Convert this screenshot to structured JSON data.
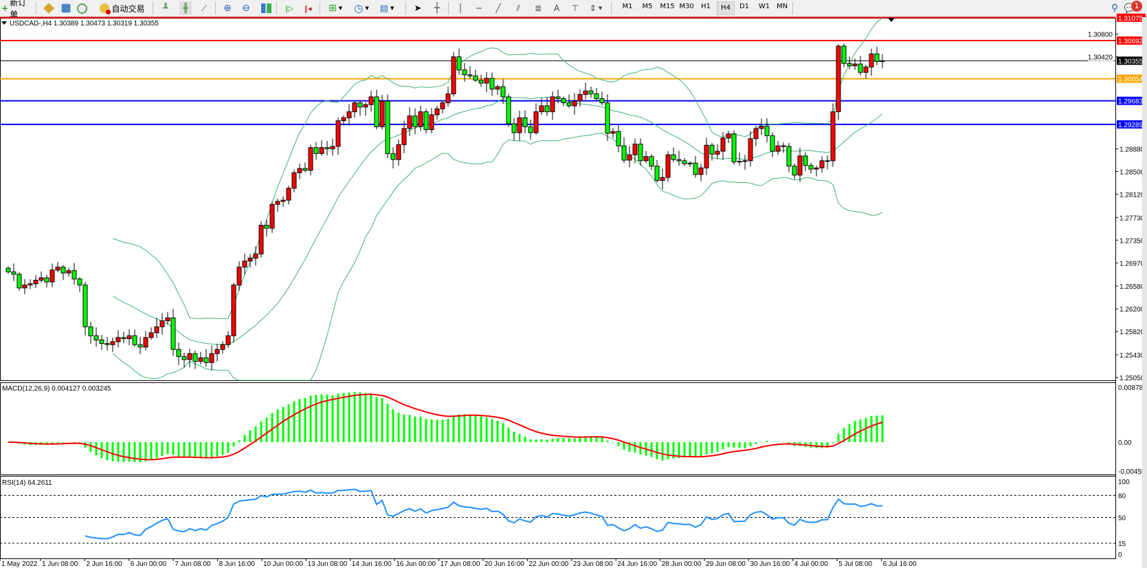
{
  "toolbar": {
    "new_order_label": "新订单",
    "auto_trade_label": "自动交易",
    "timeframes": [
      "M1",
      "M5",
      "M15",
      "M30",
      "H1",
      "H4",
      "D1",
      "W1",
      "MN"
    ],
    "active_timeframe": "H4",
    "notification_count": "1",
    "icons": [
      "new-order-icon",
      "history-icon",
      "navigator-icon",
      "signals-icon",
      "auto-trade-icon",
      "bar-chart-icon",
      "candlestick-icon",
      "line-chart-icon",
      "zoom-in-icon",
      "zoom-out-icon",
      "tile-windows-icon",
      "auto-scroll-icon",
      "chart-shift-icon",
      "indicators-icon",
      "periods-icon",
      "templates-icon",
      "cursor-icon",
      "crosshair-icon",
      "vertical-line-icon",
      "horizontal-line-icon",
      "trendline-icon",
      "equidistant-channel-icon",
      "fibonacci-icon",
      "text-icon",
      "text-label-icon",
      "arrows-icon",
      "search-icon",
      "notification-icon"
    ]
  },
  "chart": {
    "header": "USDCAD-,H4  1.30389 1.30473 1.30319 1.30355",
    "colors": {
      "bull": "#ff0000",
      "bear": "#00ff00",
      "bands": "#3cb371",
      "macd_hist": "#00ff00",
      "macd_signal": "#ff0000",
      "rsi": "#1e90ff"
    },
    "price_ticks": [
      "1.30800",
      "1.30420",
      "1.28880",
      "1.28500",
      "1.28120",
      "1.27730",
      "1.27350",
      "1.26970",
      "1.26580",
      "1.26200",
      "1.25820",
      "1.25430",
      "1.25050"
    ],
    "price_tick_values": [
      1.308,
      1.3042,
      1.2888,
      1.285,
      1.2812,
      1.2773,
      1.2735,
      1.2697,
      1.2658,
      1.262,
      1.2582,
      1.2543,
      1.2505
    ],
    "levels": [
      {
        "price": 1.31075,
        "label": "1.31075",
        "color": "#ff0000"
      },
      {
        "price": 1.30692,
        "label": "1.30692",
        "color": "#ff0000"
      },
      {
        "price": 1.30355,
        "label": "1.30355",
        "color": "#000000"
      },
      {
        "price": 1.30054,
        "label": "1.30054",
        "color": "#ffa500"
      },
      {
        "price": 1.29683,
        "label": "1.29683",
        "color": "#0000ff"
      },
      {
        "price": 1.29289,
        "label": "1.29289",
        "color": "#0000ff"
      }
    ],
    "time_labels": [
      "1 May 2022",
      "1 Jun 08:00",
      "2 Jun 16:00",
      "6 Jun 00:00",
      "7 Jun 08:00",
      "8 Jun 16:00",
      "10 Jun 00:00",
      "13 Jun 08:00",
      "14 Jun 16:00",
      "16 Jun 00:00",
      "17 Jun 08:00",
      "20 Jun 16:00",
      "22 Jun 00:00",
      "23 Jun 08:00",
      "24 Jun 16:00",
      "28 Jun 00:00",
      "29 Jun 08:00",
      "30 Jun 16:00",
      "4 Jul 00:00",
      "5 Jul 08:00",
      "6 Jul 16:00"
    ]
  },
  "macd": {
    "label": "MACD(12,26,9) 0.004127 0.003245",
    "ticks": [
      "0.008788",
      "0.00",
      "-0.00455"
    ],
    "range": [
      -0.00455,
      0.008788
    ]
  },
  "rsi": {
    "label": "RSI(14) 64.2611",
    "ticks": [
      "100",
      "80",
      "50",
      "15",
      "0"
    ],
    "levels": [
      80,
      50,
      15
    ]
  },
  "chart_data": {
    "type": "candlestick",
    "symbol": "USDCAD-",
    "timeframe": "H4",
    "ylim": [
      1.2505,
      1.31075
    ],
    "closes": [
      1.2682,
      1.2678,
      1.2655,
      1.266,
      1.2662,
      1.2668,
      1.2672,
      1.2665,
      1.2685,
      1.269,
      1.268,
      1.2684,
      1.267,
      1.266,
      1.259,
      1.2575,
      1.2568,
      1.2562,
      1.256,
      1.2565,
      1.2572,
      1.257,
      1.2575,
      1.256,
      1.2556,
      1.2572,
      1.258,
      1.259,
      1.26,
      1.2605,
      1.2552,
      1.254,
      1.2535,
      1.2545,
      1.2532,
      1.2538,
      1.253,
      1.2545,
      1.2552,
      1.256,
      1.2575,
      1.266,
      1.269,
      1.27,
      1.2705,
      1.2712,
      1.276,
      1.2755,
      1.2795,
      1.28,
      1.2802,
      1.2822,
      1.2848,
      1.2855,
      1.2852,
      1.289,
      1.288,
      1.289,
      1.2888,
      1.2892,
      1.2935,
      1.294,
      1.295,
      1.2965,
      1.2958,
      1.2962,
      1.2975,
      1.2925,
      1.2968,
      1.288,
      1.287,
      1.2895,
      1.2922,
      1.2943,
      1.2925,
      1.295,
      1.292,
      1.2945,
      1.2955,
      1.2965,
      1.298,
      1.3042,
      1.302,
      1.3012,
      1.301,
      1.3003,
      1.2998,
      1.3006,
      1.2988,
      1.2992,
      1.2975,
      1.293,
      1.2915,
      1.294,
      1.2925,
      1.2915,
      1.295,
      1.296,
      1.295,
      1.2975,
      1.2972,
      1.2965,
      1.296,
      1.2968,
      1.2979,
      1.2985,
      1.298,
      1.2972,
      1.2965,
      1.2914,
      1.2917,
      1.2893,
      1.2869,
      1.2878,
      1.2896,
      1.2868,
      1.2875,
      1.2859,
      1.2835,
      1.284,
      1.2878,
      1.287,
      1.2868,
      1.2863,
      1.2864,
      1.2845,
      1.2856,
      1.2894,
      1.2879,
      1.2884,
      1.2906,
      1.2913,
      1.2866,
      1.2867,
      1.2868,
      1.2905,
      1.2922,
      1.2926,
      1.291,
      1.2884,
      1.2893,
      1.2892,
      1.2859,
      1.2844,
      1.2876,
      1.286,
      1.2854,
      1.2856,
      1.2868,
      1.2868,
      1.295,
      1.306,
      1.3031,
      1.3027,
      1.303,
      1.3016,
      1.3025,
      1.3047,
      1.3034,
      1.30355
    ],
    "indicators": [
      "Bollinger Bands (20,2)",
      "MACD(12,26,9)",
      "RSI(14)"
    ]
  }
}
